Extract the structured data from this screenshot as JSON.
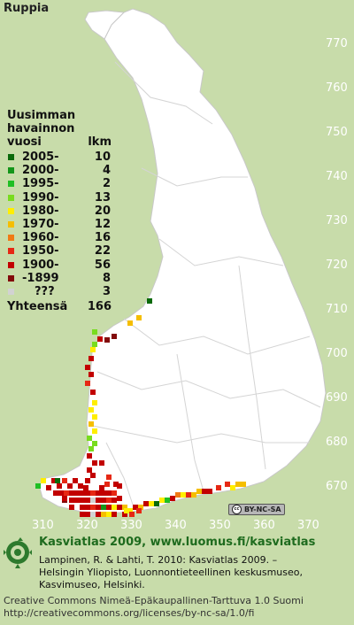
{
  "title": "Ruppia",
  "legend": {
    "heading_line1": "Uusimman",
    "heading_line2": "havainnon",
    "heading_year": "vuosi",
    "heading_count": "lkm",
    "entries": [
      {
        "label": "2005-",
        "count": "10",
        "color": "#0a6a0a"
      },
      {
        "label": "2000-",
        "count": "4",
        "color": "#14961a"
      },
      {
        "label": "1995-",
        "count": "2",
        "color": "#1fbf24"
      },
      {
        "label": "1990-",
        "count": "13",
        "color": "#78dc1e"
      },
      {
        "label": "1980-",
        "count": "20",
        "color": "#ffee00"
      },
      {
        "label": "1970-",
        "count": "12",
        "color": "#f5be00"
      },
      {
        "label": "1960-",
        "count": "16",
        "color": "#f07a14"
      },
      {
        "label": "1950-",
        "count": "22",
        "color": "#e62814"
      },
      {
        "label": "1900-",
        "count": "56",
        "color": "#c20000"
      },
      {
        "label": "-1899",
        "count": "8",
        "color": "#820a0a"
      },
      {
        "label": "???",
        "count": "3",
        "color": "#d2d2d2"
      }
    ],
    "total_label": "Yhteensä",
    "total_count": "166"
  },
  "grid_labels": {
    "north": [
      "770",
      "760",
      "750",
      "740",
      "730",
      "720",
      "710",
      "700",
      "690",
      "680",
      "670"
    ],
    "east": [
      "310",
      "320",
      "330",
      "340",
      "350",
      "360",
      "370"
    ]
  },
  "license_badge": "BY-NC-SA",
  "footer": {
    "atlas_title": "Kasviatlas 2009, www.luomus.fi/kasviatlas",
    "citation_line1": "Lampinen, R. & Lahti, T. 2010: Kasviatlas 2009. –",
    "citation_line2": "Helsingin Yliopisto, Luonnontieteellinen keskusmuseo,",
    "citation_line3": "Kasvimuseo, Helsinki.",
    "license_line1": "Creative Commons Nimeä-Epäkaupallinen-Tarttuva 1.0 Suomi",
    "license_line2": "http://creativecommons.org/licenses/by-nc-sa/1.0/fi"
  }
}
